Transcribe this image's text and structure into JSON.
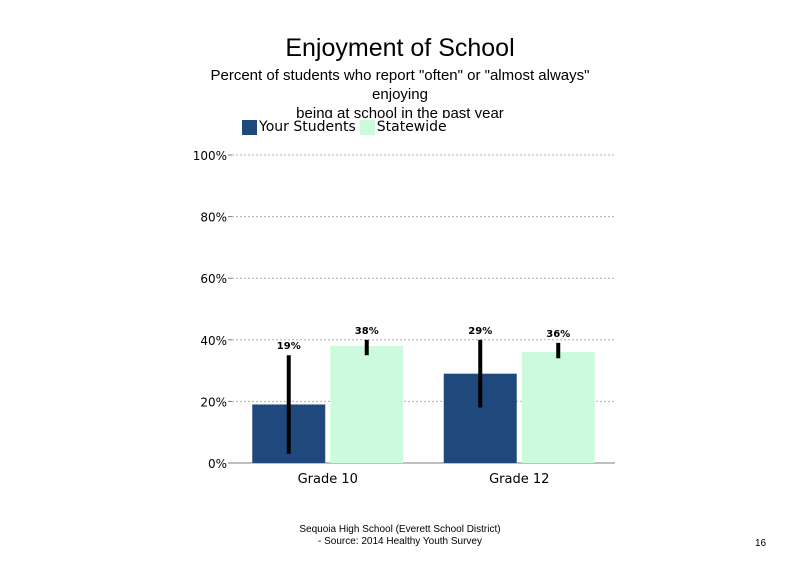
{
  "chart_data": {
    "type": "bar",
    "title": "Enjoyment of School",
    "subtitle": [
      "Percent of students who report \"often\" or \"almost always\"",
      "enjoying",
      "being at school in the past year"
    ],
    "categories": [
      "Grade 10",
      "Grade 12"
    ],
    "series": [
      {
        "name": "Your Students",
        "values": [
          19,
          29
        ],
        "labels": [
          "19%",
          "29%"
        ],
        "error_low": [
          3,
          18
        ],
        "error_high": [
          35,
          40
        ],
        "color": "#1f497d"
      },
      {
        "name": "Statewide",
        "values": [
          38,
          36
        ],
        "labels": [
          "38%",
          "36%"
        ],
        "error_low": [
          35,
          34
        ],
        "error_high": [
          40,
          39
        ],
        "color": "#ccfadc"
      }
    ],
    "ylim": [
      0,
      100
    ],
    "yticks": [
      "0%",
      "20%",
      "40%",
      "60%",
      "80%",
      "100%"
    ],
    "ytick_values": [
      0,
      20,
      40,
      60,
      80,
      100
    ],
    "grid": true,
    "legend_position": "top-left"
  },
  "footer": {
    "line1": "Sequoia High School (Everett School District)",
    "line2": "- Source: 2014 Healthy Youth Survey"
  },
  "page_number": "16"
}
